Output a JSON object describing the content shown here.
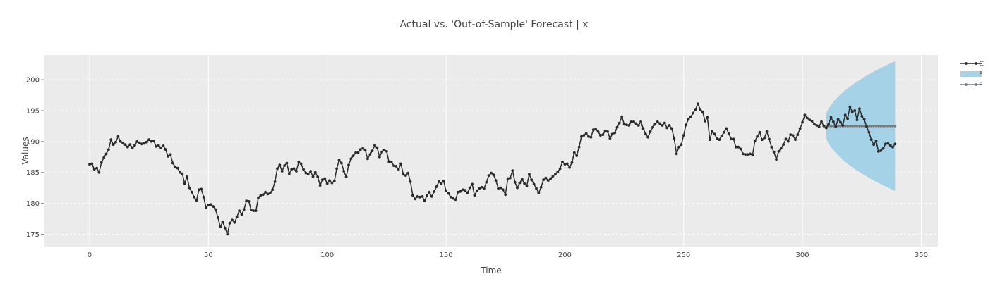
{
  "chart_data": {
    "type": "line",
    "title": "Actual vs. 'Out-of-Sample' Forecast | x",
    "xlabel": "Time",
    "ylabel": "Values",
    "xlim": [
      -19,
      357
    ],
    "ylim": [
      173,
      204
    ],
    "x_ticks": [
      0,
      50,
      100,
      150,
      200,
      250,
      300,
      350
    ],
    "y_ticks": [
      175,
      180,
      185,
      190,
      195,
      200
    ],
    "grid": true,
    "legend_position": "right, truncated",
    "legend": [
      {
        "label": "C",
        "color": "#2a2a2a",
        "kind": "line-marker"
      },
      {
        "label": "F",
        "color": "#a6d2e8",
        "kind": "band"
      },
      {
        "label": "F",
        "color": "#6b7c93",
        "kind": "line-marker"
      }
    ],
    "colors": {
      "actual": "#2a2a2a",
      "interval": "#a6d2e8",
      "forecast": "#7a7a7a",
      "plot_bg": "#ebebeb"
    },
    "actual": {
      "x_start": 0,
      "y": [
        186.3,
        186.4,
        185.5,
        185.7,
        185.0,
        186.6,
        187.4,
        188.0,
        188.7,
        190.3,
        189.5,
        189.9,
        190.8,
        190.0,
        189.8,
        189.5,
        189.1,
        189.5,
        189.0,
        189.4,
        190.0,
        189.8,
        189.6,
        189.7,
        189.9,
        190.3,
        190.0,
        190.1,
        189.2,
        189.4,
        189.0,
        189.3,
        188.7,
        187.6,
        187.9,
        186.5,
        185.9,
        185.7,
        185.0,
        184.8,
        183.2,
        184.3,
        182.5,
        181.8,
        181.0,
        180.5,
        182.2,
        182.3,
        181.0,
        179.3,
        179.7,
        179.8,
        179.5,
        179.0,
        177.7,
        176.2,
        177.0,
        176.0,
        175.0,
        176.8,
        177.3,
        176.9,
        177.8,
        178.8,
        178.2,
        179.0,
        180.4,
        180.3,
        178.9,
        178.8,
        178.8,
        180.9,
        181.3,
        181.4,
        181.8,
        181.5,
        181.7,
        182.2,
        183.5,
        185.6,
        186.2,
        185.2,
        186.1,
        186.5,
        184.8,
        185.5,
        185.6,
        185.2,
        186.7,
        186.4,
        185.5,
        184.9,
        184.7,
        185.2,
        184.3,
        185.0,
        184.3,
        182.9,
        183.8,
        184.0,
        183.2,
        183.7,
        183.3,
        183.6,
        185.6,
        187.0,
        186.5,
        185.2,
        184.3,
        186.2,
        187.2,
        187.7,
        188.2,
        188.2,
        188.7,
        188.9,
        188.6,
        187.2,
        187.9,
        188.5,
        189.4,
        189.0,
        187.5,
        188.3,
        188.6,
        188.4,
        186.7,
        186.7,
        186.1,
        186.0,
        185.5,
        186.4,
        184.7,
        184.5,
        184.9,
        183.5,
        181.3,
        180.7,
        181.1,
        181.0,
        181.1,
        180.4,
        181.3,
        181.8,
        181.1,
        181.9,
        182.7,
        183.5,
        183.2,
        183.6,
        182.0,
        181.6,
        181.0,
        180.8,
        180.6,
        181.8,
        181.9,
        182.2,
        182.1,
        181.7,
        182.5,
        183.1,
        181.3,
        182.0,
        182.4,
        182.6,
        182.4,
        183.4,
        184.5,
        184.9,
        184.6,
        183.7,
        182.4,
        182.5,
        182.2,
        181.4,
        184.0,
        184.1,
        185.3,
        183.4,
        182.5,
        183.3,
        183.9,
        183.2,
        182.8,
        184.7,
        183.8,
        183.1,
        182.4,
        181.7,
        182.6,
        183.8,
        184.1,
        183.7,
        184.0,
        184.4,
        184.7,
        185.1,
        185.6,
        186.7,
        186.3,
        186.4,
        185.8,
        186.6,
        188.2,
        187.7,
        189.1,
        190.8,
        191.0,
        191.3,
        190.8,
        190.7,
        191.9,
        192.0,
        191.6,
        191.0,
        191.1,
        191.7,
        191.6,
        190.5,
        191.2,
        191.4,
        192.3,
        193.0,
        194.0,
        192.8,
        192.7,
        192.6,
        193.2,
        193.2,
        192.9,
        192.6,
        193.2,
        192.1,
        191.2,
        190.7,
        191.6,
        192.3,
        192.8,
        193.2,
        192.9,
        192.6,
        193.0,
        192.2,
        192.6,
        192.1,
        190.5,
        188.0,
        189.1,
        189.5,
        191.0,
        192.7,
        193.6,
        194.0,
        194.6,
        195.2,
        196.1,
        195.2,
        194.8,
        193.3,
        193.9,
        190.3,
        191.6,
        191.2,
        190.5,
        190.3,
        190.9,
        191.5,
        192.1,
        191.3,
        190.4,
        190.4,
        189.1,
        189.1,
        188.8,
        188.0,
        187.9,
        187.9,
        188.0,
        187.8,
        190.1,
        190.8,
        191.5,
        190.3,
        190.6,
        191.6,
        190.4,
        189.1,
        188.3,
        187.1,
        188.4,
        188.9,
        189.5,
        190.4,
        190.0,
        191.1,
        191.0,
        190.3,
        191.1,
        192.1,
        193.1,
        194.3,
        193.8,
        193.5,
        193.3,
        192.8,
        192.6,
        192.4,
        193.2,
        192.5,
        192.3
      ]
    },
    "test": {
      "x_start": 310,
      "y": [
        192.2,
        192.8,
        193.9,
        193.2,
        192.4,
        193.6,
        193.1,
        192.6,
        194.3,
        193.7,
        195.6,
        194.8,
        195.0,
        193.5,
        195.3,
        194.1,
        193.6,
        192.4,
        191.5,
        190.3,
        189.5,
        190.1,
        188.4,
        188.5,
        188.9,
        189.6,
        189.7,
        189.4,
        189.1,
        189.6
      ]
    },
    "forecast": {
      "x_start": 310,
      "y": 192.5,
      "count": 30,
      "band_half_width_end": 10.5
    }
  }
}
